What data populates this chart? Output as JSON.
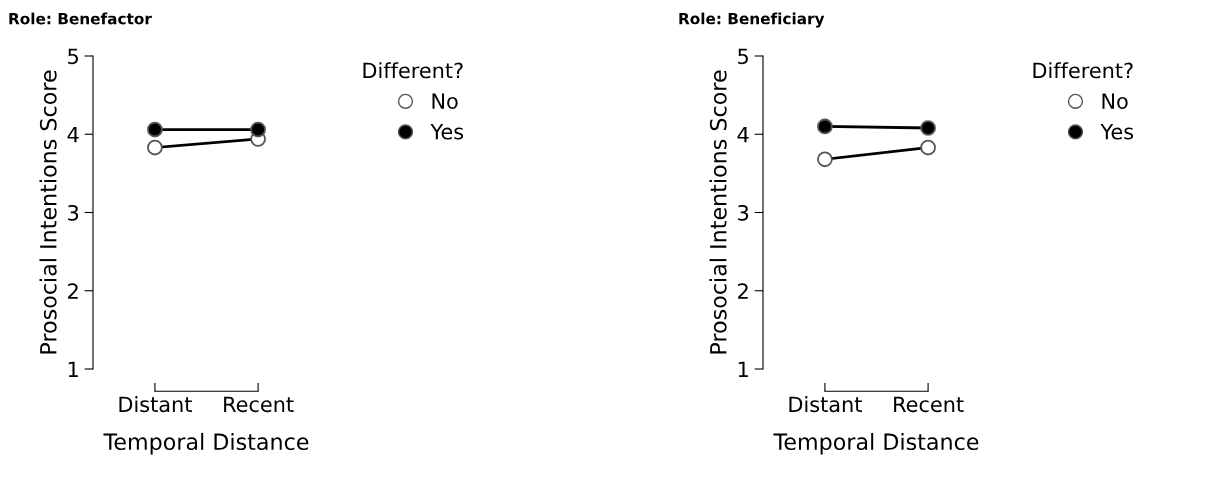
{
  "chart_data": [
    {
      "type": "line",
      "title": "Role: Benefactor",
      "xlabel": "Temporal Distance",
      "ylabel": "Prosocial Intentions Score",
      "categories": [
        "Distant",
        "Recent"
      ],
      "ylim": [
        1,
        5
      ],
      "yticks": [
        1,
        2,
        3,
        4,
        5
      ],
      "legend_title": "Different?",
      "legend": "top right",
      "marker": "circle",
      "line_style": "solid",
      "grid": false,
      "series": [
        {
          "name": "No",
          "color": "#ffffff",
          "values": [
            3.83,
            3.94
          ]
        },
        {
          "name": "Yes",
          "color": "#000000",
          "values": [
            4.06,
            4.06
          ]
        }
      ]
    },
    {
      "type": "line",
      "title": "Role: Beneficiary",
      "xlabel": "Temporal Distance",
      "ylabel": "Prosocial Intentions Score",
      "categories": [
        "Distant",
        "Recent"
      ],
      "ylim": [
        1,
        5
      ],
      "yticks": [
        1,
        2,
        3,
        4,
        5
      ],
      "legend_title": "Different?",
      "legend": "top right",
      "marker": "circle",
      "line_style": "solid",
      "grid": false,
      "series": [
        {
          "name": "No",
          "color": "#ffffff",
          "values": [
            3.68,
            3.83
          ]
        },
        {
          "name": "Yes",
          "color": "#000000",
          "values": [
            4.1,
            4.08
          ]
        }
      ]
    }
  ]
}
